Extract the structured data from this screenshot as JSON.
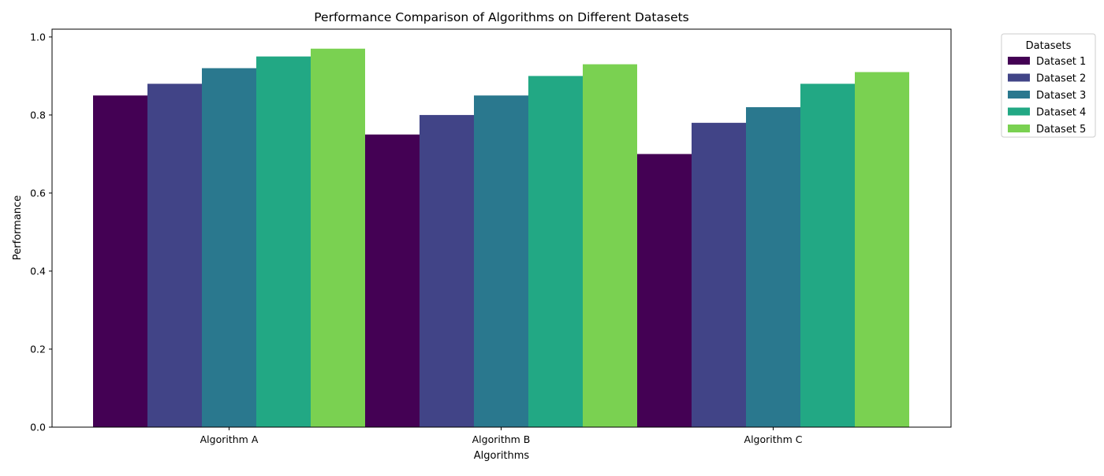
{
  "chart_data": {
    "type": "bar",
    "title": "Performance Comparison of Algorithms on Different Datasets",
    "xlabel": "Algorithms",
    "ylabel": "Performance",
    "categories": [
      "Algorithm A",
      "Algorithm B",
      "Algorithm C"
    ],
    "series": [
      {
        "name": "Dataset 1",
        "color": "#440154",
        "values": [
          0.85,
          0.75,
          0.7
        ]
      },
      {
        "name": "Dataset 2",
        "color": "#414487",
        "values": [
          0.88,
          0.8,
          0.78
        ]
      },
      {
        "name": "Dataset 3",
        "color": "#2a788e",
        "values": [
          0.92,
          0.85,
          0.82
        ]
      },
      {
        "name": "Dataset 4",
        "color": "#22a884",
        "values": [
          0.95,
          0.9,
          0.88
        ]
      },
      {
        "name": "Dataset 5",
        "color": "#7ad151",
        "values": [
          0.97,
          0.93,
          0.91
        ]
      }
    ],
    "ylim": [
      0,
      1.02
    ],
    "yticks": [
      "0.0",
      "0.2",
      "0.4",
      "0.6",
      "0.8",
      "1.0"
    ],
    "grid": false,
    "legend": {
      "title": "Datasets",
      "placement": "outside-top-right"
    }
  }
}
